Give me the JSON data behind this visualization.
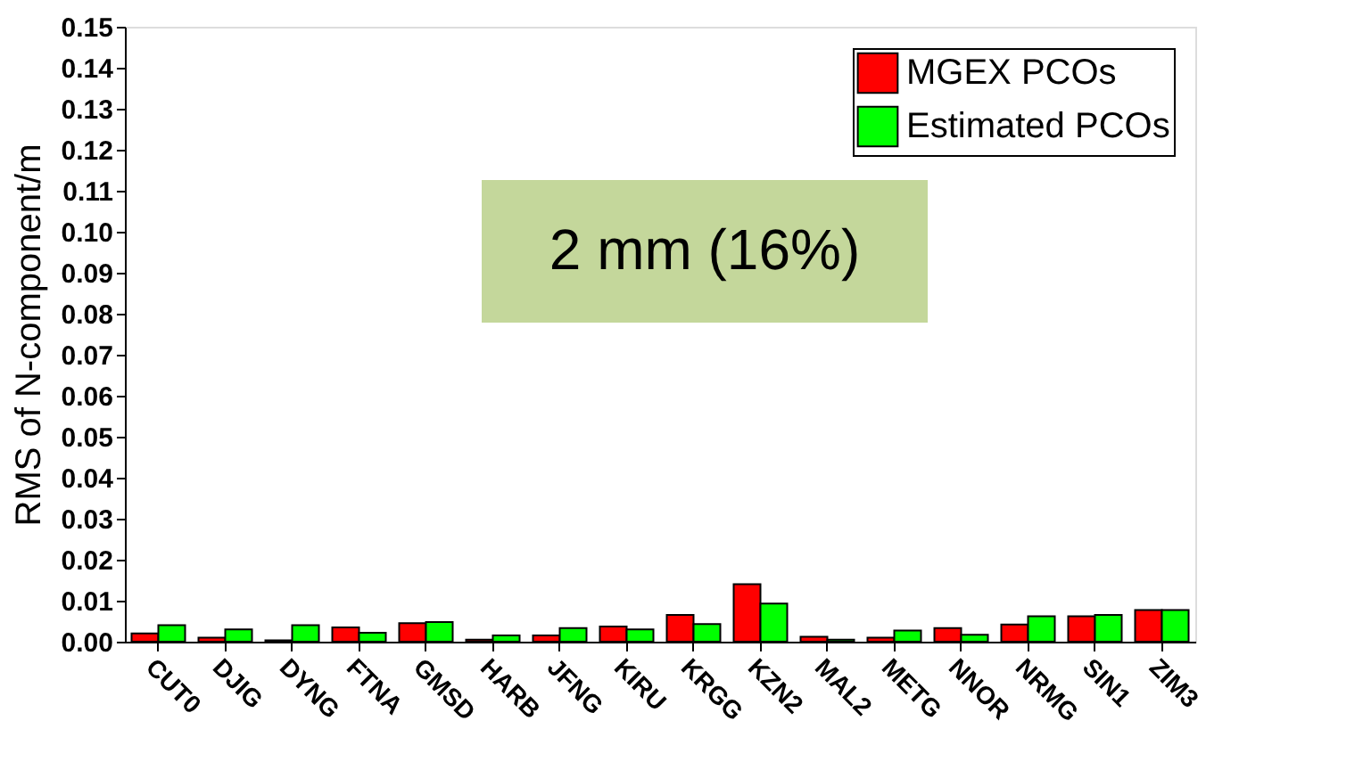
{
  "chart_data": {
    "type": "bar",
    "ylabel": "RMS of N-component/m",
    "categories": [
      "CUT0",
      "DJIG",
      "DYNG",
      "FTNA",
      "GMSD",
      "HARB",
      "JFNG",
      "KIRU",
      "KRGG",
      "KZN2",
      "MAL2",
      "METG",
      "NNOR",
      "NRMG",
      "SIN1",
      "ZIM3"
    ],
    "series": [
      {
        "name": "MGEX PCOs",
        "color": "#ff0000",
        "values": [
          0.002,
          0.001,
          0.0003,
          0.0035,
          0.0045,
          0.0005,
          0.0015,
          0.0037,
          0.0065,
          0.014,
          0.0012,
          0.001,
          0.0033,
          0.0042,
          0.0062,
          0.0077
        ]
      },
      {
        "name": "Estimated PCOs",
        "color": "#00ff00",
        "values": [
          0.004,
          0.003,
          0.004,
          0.0022,
          0.0048,
          0.0015,
          0.0033,
          0.003,
          0.0043,
          0.0093,
          0.0005,
          0.0027,
          0.0017,
          0.0062,
          0.0065,
          0.0077
        ]
      }
    ],
    "ylim": [
      0,
      0.15
    ],
    "yticks": [
      {
        "value": 0,
        "label": "0.00"
      },
      0.01,
      0.02,
      0.03,
      0.04,
      0.05,
      0.06,
      0.07,
      0.08,
      0.09,
      {
        "value": 0.1,
        "label": "0.10"
      },
      0.11,
      0.12,
      0.13,
      0.14,
      0.15
    ],
    "annotations": [
      "2 mm (16%)"
    ],
    "legend": "top right",
    "grid": false
  }
}
